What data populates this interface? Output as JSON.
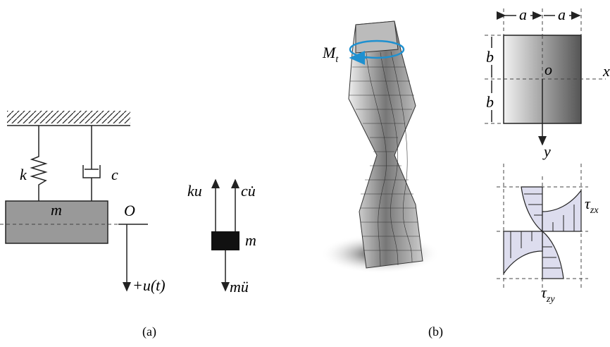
{
  "panel_a": {
    "spring_label": "k",
    "damper_label": "c",
    "mass_label": "m",
    "origin_label": "O",
    "displacement_label": "+u(t)",
    "free_body": {
      "spring_force": "ku",
      "damper_force": "cu̇",
      "mass_label": "m",
      "inertia_force": "mü"
    },
    "caption": "(a)"
  },
  "panel_b": {
    "torque": {
      "symbol": "M",
      "subscript": "t"
    },
    "width_labels": [
      "a",
      "a"
    ],
    "height_labels": [
      "b",
      "b"
    ],
    "origin_label": "o",
    "x_axis": "x",
    "y_axis": "y",
    "stress_zx": {
      "symbol": "τ",
      "subscript": "zx"
    },
    "stress_zy": {
      "symbol": "τ",
      "subscript": "zy"
    },
    "caption": "(b)"
  }
}
